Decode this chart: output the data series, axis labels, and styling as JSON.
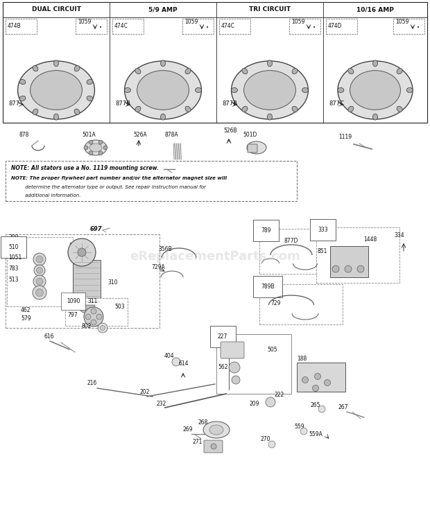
{
  "bg_color": "#ffffff",
  "text_color": "#111111",
  "border_color": "#222222",
  "table_headers": [
    "DUAL CIRCUIT",
    "5/9 AMP",
    "TRI CIRCUIT",
    "10/16 AMP"
  ],
  "stator_part_nums": [
    [
      "474B",
      "1059"
    ],
    [
      "474C",
      "1059"
    ],
    [
      "474C",
      "1059"
    ],
    [
      "474D",
      "1059"
    ]
  ],
  "stator_ring_labels": [
    "877",
    "877B",
    "877B",
    "877C"
  ],
  "note_line1": "NOTE: All stators use a No. 1119 mounting screw.",
  "note_line2": "NOTE: The proper flywheel part number and/or the alternator magnet size will",
  "note_line3": "         determine the alternator type or output. See repair instruction manual for",
  "note_line4": "         additional information.",
  "watermark": "eReplacementParts.com",
  "watermark_color": "#bbbbbb",
  "figsize": [
    6.2,
    7.4
  ],
  "dpi": 100
}
